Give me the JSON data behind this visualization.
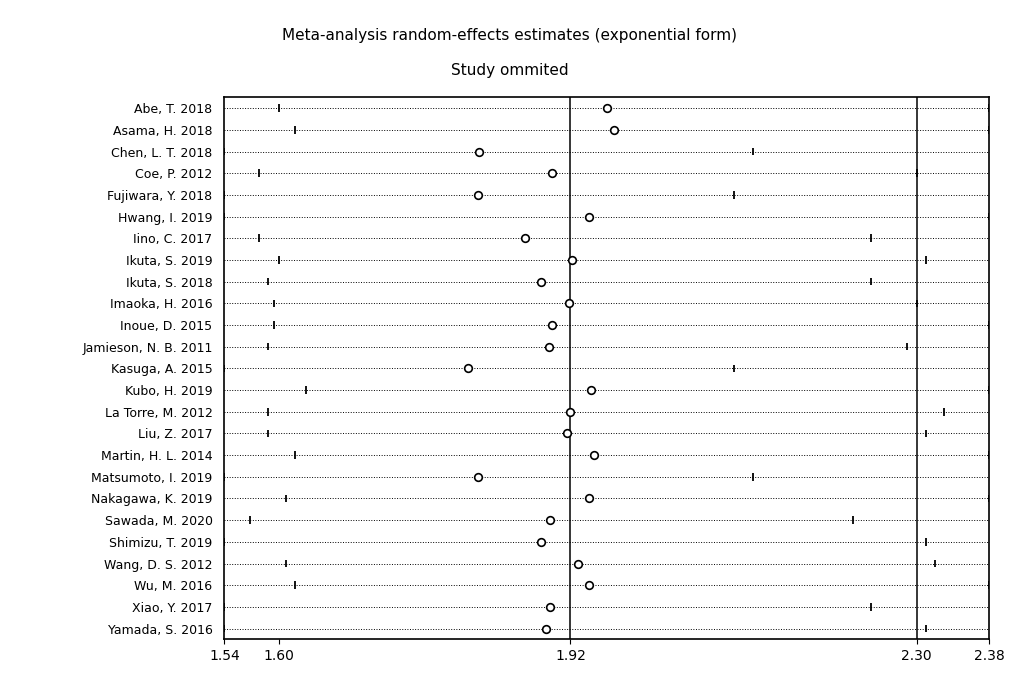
{
  "title_line1": "Meta-analysis random-effects estimates (exponential form)",
  "title_line2": "Study ommited",
  "studies": [
    "Abe, T. 2018",
    "Asama, H. 2018",
    "Chen, L. T. 2018",
    "Coe, P. 2012",
    "Fujiwara, Y. 2018",
    "Hwang, I. 2019",
    "Iino, C. 2017",
    "Ikuta, S. 2019",
    "Ikuta, S. 2018",
    "Imaoka, H. 2016",
    "Inoue, D. 2015",
    "Jamieson, N. B. 2011",
    "Kasuga, A. 2015",
    "Kubo, H. 2019",
    "La Torre, M. 2012",
    "Liu, Z. 2017",
    "Martin, H. L. 2014",
    "Matsumoto, I. 2019",
    "Nakagawa, K. 2019",
    "Sawada, M. 2020",
    "Shimizu, T. 2019",
    "Wang, D. S. 2012",
    "Wu, M. 2016",
    "Xiao, Y. 2017",
    "Yamada, S. 2016"
  ],
  "estimates": [
    1.96,
    1.968,
    1.82,
    1.9,
    1.818,
    1.94,
    1.87,
    1.922,
    1.888,
    1.918,
    1.9,
    1.896,
    1.808,
    1.942,
    1.92,
    1.916,
    1.946,
    1.818,
    1.94,
    1.898,
    1.888,
    1.928,
    1.94,
    1.898,
    1.893
  ],
  "ci_lower": [
    1.6,
    1.618,
    1.54,
    1.578,
    1.54,
    1.54,
    1.578,
    1.6,
    1.588,
    1.594,
    1.594,
    1.588,
    1.54,
    1.63,
    1.588,
    1.588,
    1.618,
    1.54,
    1.608,
    1.568,
    1.54,
    1.608,
    1.618,
    1.54,
    1.54
  ],
  "ci_upper": [
    2.38,
    2.38,
    2.12,
    2.3,
    2.1,
    2.38,
    2.25,
    2.31,
    2.25,
    2.3,
    2.38,
    2.29,
    2.1,
    2.38,
    2.33,
    2.31,
    2.38,
    2.12,
    2.38,
    2.23,
    2.31,
    2.32,
    2.38,
    2.25,
    2.31
  ],
  "line_left": [
    1.54,
    1.54,
    1.54,
    1.54,
    1.54,
    1.54,
    1.54,
    1.54,
    1.54,
    1.54,
    1.54,
    1.54,
    1.54,
    1.54,
    1.54,
    1.54,
    1.54,
    1.54,
    1.54,
    1.54,
    1.54,
    1.54,
    1.54,
    1.54,
    1.54
  ],
  "line_right": [
    2.38,
    2.38,
    2.38,
    2.38,
    2.38,
    2.38,
    2.38,
    2.38,
    2.38,
    2.38,
    2.38,
    2.38,
    2.38,
    2.38,
    2.38,
    2.38,
    2.38,
    2.38,
    2.38,
    2.38,
    2.38,
    2.38,
    2.38,
    2.38,
    2.38
  ],
  "xmin": 1.54,
  "xmax": 2.38,
  "xticks": [
    1.54,
    1.6,
    1.92,
    2.3,
    2.38
  ],
  "xtick_labels": [
    "1.54",
    "1.60",
    "1.92",
    "2.30",
    "2.38"
  ],
  "vlines": [
    1.92,
    2.3
  ],
  "background_color": "#ffffff"
}
